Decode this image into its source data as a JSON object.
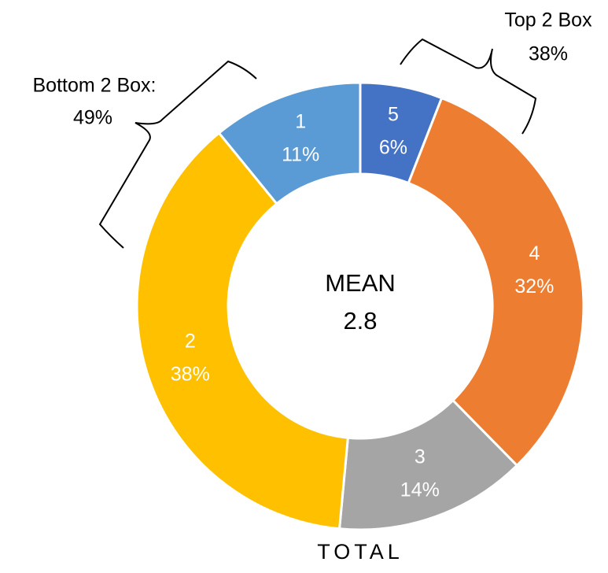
{
  "chart_data": {
    "type": "donut",
    "categories": [
      "5",
      "4",
      "3",
      "2",
      "1"
    ],
    "values": [
      6,
      32,
      14,
      38,
      11
    ],
    "value_labels": [
      "6%",
      "32%",
      "14%",
      "38%",
      "11%"
    ],
    "colors": [
      "#4472c4",
      "#ed7d31",
      "#a5a5a5",
      "#ffc000",
      "#5b9bd5"
    ],
    "center_title": "MEAN",
    "center_value": 2.8,
    "x_label": "TOTAL",
    "annotations": [
      {
        "text": "Bottom 2 Box:",
        "value": "49%"
      },
      {
        "text": "Top 2 Box",
        "value": "38%"
      }
    ]
  }
}
